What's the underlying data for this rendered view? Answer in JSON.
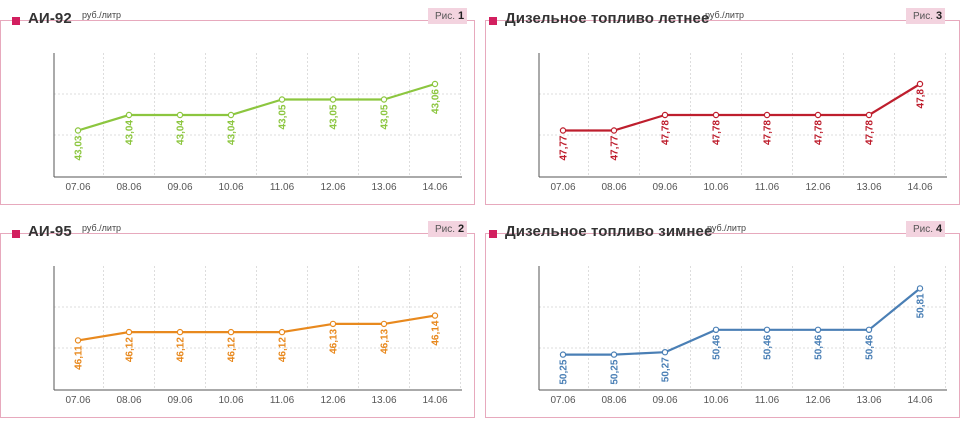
{
  "charts": [
    {
      "title": "АИ-92",
      "unit": "руб./литр",
      "fig_label": "Рис.",
      "fig_num": "1",
      "color": "#8cc63f"
    },
    {
      "title": "Дизельное топливо летнее",
      "unit": "руб./литр",
      "fig_label": "Рис.",
      "fig_num": "3",
      "color": "#be1e2d"
    },
    {
      "title": "АИ-95",
      "unit": "руб./литр",
      "fig_label": "Рис.",
      "fig_num": "2",
      "color": "#e8891e"
    },
    {
      "title": "Дизельное топливо зимнее",
      "unit": "руб./литр",
      "fig_label": "Рис.",
      "fig_num": "4",
      "color": "#4a7fb5"
    }
  ],
  "chart_data": [
    {
      "type": "line",
      "title": "АИ-92",
      "ylabel": "руб./литр",
      "categories": [
        "07.06",
        "08.06",
        "09.06",
        "10.06",
        "11.06",
        "12.06",
        "13.06",
        "14.06"
      ],
      "values": [
        43.03,
        43.04,
        43.04,
        43.04,
        43.05,
        43.05,
        43.05,
        43.06
      ],
      "labels": [
        "43,03",
        "43,04",
        "43,04",
        "43,04",
        "43,05",
        "43,05",
        "43,05",
        "43,06"
      ],
      "ylim": [
        43.0,
        43.08
      ],
      "grid": true
    },
    {
      "type": "line",
      "title": "Дизельное топливо летнее",
      "ylabel": "руб./литр",
      "categories": [
        "07.06",
        "08.06",
        "09.06",
        "10.06",
        "11.06",
        "12.06",
        "13.06",
        "14.06"
      ],
      "values": [
        47.77,
        47.77,
        47.78,
        47.78,
        47.78,
        47.78,
        47.78,
        47.8
      ],
      "labels": [
        "47,77",
        "47,77",
        "47,78",
        "47,78",
        "47,78",
        "47,78",
        "47,78",
        "47,8"
      ],
      "ylim": [
        47.74,
        47.82
      ],
      "grid": true
    },
    {
      "type": "line",
      "title": "АИ-95",
      "ylabel": "руб./литр",
      "categories": [
        "07.06",
        "08.06",
        "09.06",
        "10.06",
        "11.06",
        "12.06",
        "13.06",
        "14.06"
      ],
      "values": [
        46.11,
        46.12,
        46.12,
        46.12,
        46.12,
        46.13,
        46.13,
        46.14
      ],
      "labels": [
        "46,11",
        "46,12",
        "46,12",
        "46,12",
        "46,12",
        "46,13",
        "46,13",
        "46,14"
      ],
      "ylim": [
        46.05,
        46.2
      ],
      "grid": true
    },
    {
      "type": "line",
      "title": "Дизельное топливо зимнее",
      "ylabel": "руб./литр",
      "categories": [
        "07.06",
        "08.06",
        "09.06",
        "10.06",
        "11.06",
        "12.06",
        "13.06",
        "14.06"
      ],
      "values": [
        50.25,
        50.25,
        50.27,
        50.46,
        50.46,
        50.46,
        50.46,
        50.81
      ],
      "labels": [
        "50,25",
        "50,25",
        "50,27",
        "50,46",
        "50,46",
        "50,46",
        "50,46",
        "50,81"
      ],
      "ylim": [
        49.95,
        51.0
      ],
      "grid": true
    }
  ]
}
